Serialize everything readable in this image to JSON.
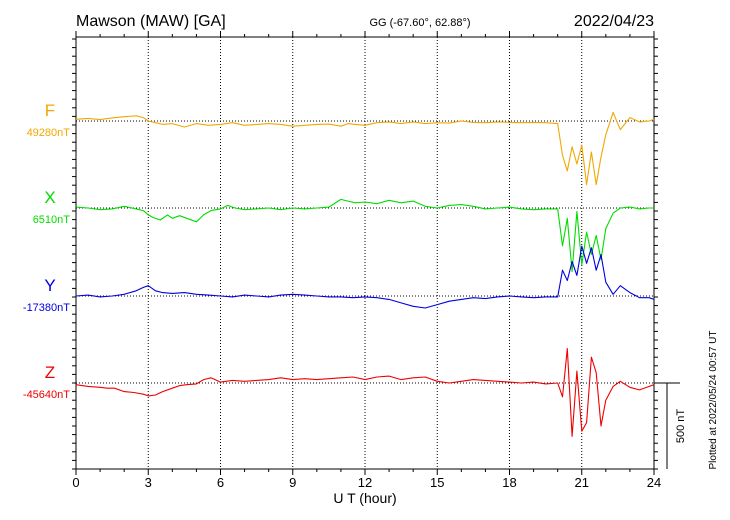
{
  "header": {
    "station": "Mawson (MAW)  [GA]",
    "coords": "GG (-67.60°,  62.88°)",
    "date": "2022/04/23"
  },
  "footer": {
    "plotted": "Plotted at 2022/05/24 00:57 UT"
  },
  "chart_data": {
    "type": "line",
    "xlabel": "U T (hour)",
    "xlim": [
      0,
      24
    ],
    "xticks": [
      "0",
      "3",
      "6",
      "9",
      "12",
      "15",
      "18",
      "21",
      "24"
    ],
    "scale_bar": {
      "label": "500 nT",
      "value_nT": 500
    },
    "series": [
      {
        "name": "F",
        "baseline": "49280nT",
        "color": "#f0a800",
        "x": [
          0,
          0.5,
          1,
          1.5,
          2,
          2.5,
          2.8,
          3,
          3.3,
          3.6,
          4,
          4.5,
          5,
          5.5,
          6,
          6.5,
          7,
          7.5,
          8,
          8.5,
          9,
          9.5,
          10,
          10.5,
          11,
          11.3,
          11.6,
          12,
          12.5,
          13,
          13.5,
          14,
          14.5,
          15,
          15.5,
          16,
          16.5,
          17,
          17.5,
          18,
          18.5,
          19,
          19.5,
          20,
          20.2,
          20.4,
          20.6,
          20.8,
          21,
          21.2,
          21.4,
          21.6,
          21.8,
          22,
          22.3,
          22.6,
          23,
          23.4,
          23.8,
          24
        ],
        "y": [
          10,
          15,
          8,
          18,
          25,
          30,
          20,
          0,
          -10,
          -20,
          -15,
          -35,
          -15,
          -25,
          -20,
          -10,
          -25,
          -20,
          -15,
          -20,
          -30,
          -25,
          -20,
          -18,
          -30,
          -15,
          -20,
          -25,
          -10,
          -5,
          -15,
          -5,
          -15,
          -10,
          -12,
          0,
          -8,
          -10,
          -5,
          -8,
          -10,
          -8,
          -10,
          -15,
          -200,
          -290,
          -150,
          -250,
          -140,
          -370,
          -180,
          -370,
          -210,
          -80,
          50,
          -50,
          20,
          -5,
          0,
          10
        ]
      },
      {
        "name": "X",
        "baseline": "6510nT",
        "color": "#00dd00",
        "x": [
          0,
          0.5,
          1,
          1.5,
          2,
          2.5,
          2.8,
          3,
          3.2,
          3.5,
          3.8,
          4,
          4.3,
          4.6,
          5,
          5.3,
          5.6,
          6,
          6.3,
          6.6,
          7,
          7.5,
          8,
          8.5,
          9,
          9.5,
          10,
          10.5,
          11,
          11.3,
          11.6,
          12,
          12.5,
          13,
          13.5,
          14,
          14.5,
          15,
          15.5,
          16,
          16.5,
          17,
          17.5,
          18,
          18.5,
          19,
          19.5,
          20,
          20.2,
          20.4,
          20.6,
          20.8,
          21,
          21.2,
          21.4,
          21.6,
          21.8,
          22,
          22.3,
          22.6,
          23,
          23.4,
          23.8,
          24
        ],
        "y": [
          5,
          0,
          -10,
          -5,
          10,
          -5,
          -15,
          -40,
          -55,
          -70,
          -40,
          -60,
          -45,
          -60,
          -80,
          -40,
          -15,
          -5,
          15,
          0,
          -10,
          -5,
          0,
          -10,
          0,
          -5,
          0,
          5,
          50,
          40,
          30,
          35,
          25,
          45,
          30,
          40,
          10,
          0,
          15,
          20,
          10,
          -5,
          0,
          5,
          -5,
          -10,
          -5,
          -5,
          -220,
          -60,
          -370,
          -20,
          -330,
          -140,
          -270,
          -160,
          -300,
          -120,
          -30,
          0,
          5,
          -5,
          0,
          0
        ]
      },
      {
        "name": "Y",
        "baseline": "-17380nT",
        "color": "#0000e0",
        "x": [
          0,
          0.5,
          1,
          1.5,
          2,
          2.5,
          2.8,
          3,
          3.3,
          3.6,
          4,
          4.5,
          5,
          5.5,
          6,
          6.5,
          7,
          7.5,
          8,
          8.5,
          9,
          9.5,
          10,
          10.5,
          11,
          11.5,
          12,
          12.5,
          13,
          13.5,
          14,
          14.5,
          15,
          15.5,
          16,
          16.5,
          17,
          17.5,
          18,
          18.5,
          19,
          19.5,
          20,
          20.2,
          20.4,
          20.6,
          20.8,
          21,
          21.2,
          21.4,
          21.6,
          21.8,
          22,
          22.3,
          22.6,
          23,
          23.4,
          23.8,
          24
        ],
        "y": [
          0,
          5,
          -5,
          0,
          10,
          30,
          50,
          60,
          30,
          20,
          15,
          20,
          10,
          5,
          0,
          -5,
          5,
          0,
          -5,
          5,
          10,
          5,
          0,
          -5,
          -5,
          -10,
          -5,
          -10,
          -20,
          -40,
          -60,
          -70,
          -50,
          -30,
          -20,
          -10,
          -15,
          -5,
          0,
          -5,
          -10,
          -5,
          -5,
          150,
          90,
          200,
          120,
          290,
          190,
          280,
          150,
          240,
          80,
          10,
          60,
          20,
          -10,
          -10,
          -20
        ]
      },
      {
        "name": "Z",
        "baseline": "-45640nT",
        "color": "#ee0000",
        "x": [
          0,
          0.5,
          1,
          1.3,
          1.6,
          2,
          2.4,
          2.8,
          3,
          3.3,
          3.6,
          4,
          4.3,
          4.6,
          5,
          5.3,
          5.6,
          6,
          6.5,
          7,
          7.5,
          8,
          8.5,
          9,
          9.5,
          10,
          10.5,
          11,
          11.5,
          12,
          12.5,
          13,
          13.5,
          14,
          14.5,
          15,
          15.5,
          16,
          16.5,
          17,
          17.5,
          18,
          18.5,
          19,
          19.5,
          20,
          20.2,
          20.4,
          20.6,
          20.8,
          21,
          21.2,
          21.4,
          21.6,
          21.8,
          22,
          22.3,
          22.6,
          23,
          23.4,
          23.8,
          24
        ],
        "y": [
          -10,
          -20,
          -25,
          -30,
          -30,
          -50,
          -55,
          -65,
          -75,
          -70,
          -50,
          -30,
          -15,
          -10,
          -5,
          20,
          30,
          5,
          15,
          10,
          15,
          20,
          30,
          20,
          25,
          20,
          25,
          30,
          35,
          20,
          35,
          40,
          20,
          30,
          35,
          10,
          0,
          10,
          20,
          15,
          10,
          5,
          0,
          5,
          -5,
          0,
          -80,
          200,
          -310,
          70,
          -280,
          -230,
          150,
          60,
          -250,
          -100,
          -20,
          10,
          -25,
          -40,
          -20,
          -10
        ]
      }
    ]
  }
}
